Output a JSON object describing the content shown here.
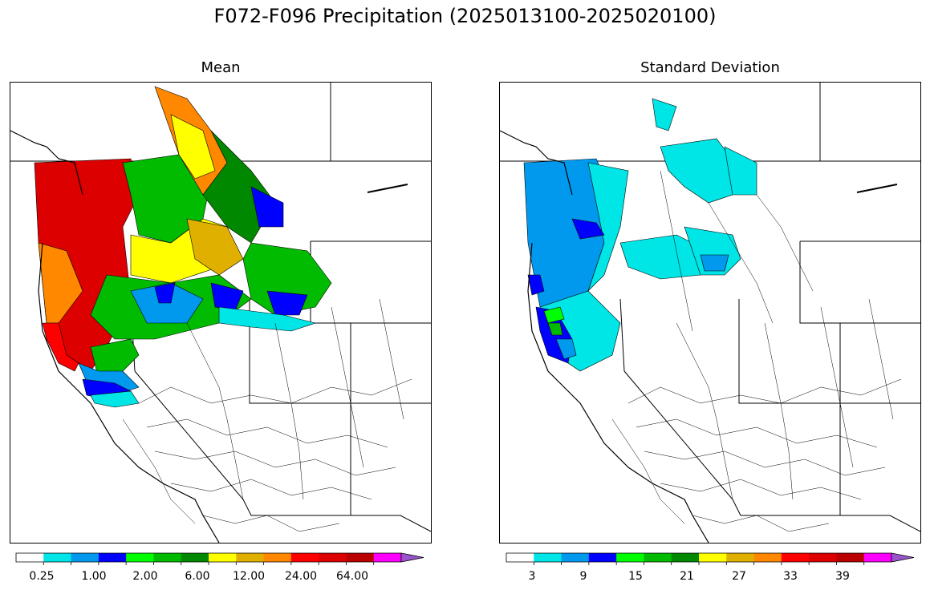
{
  "title": "F072-F096 Precipitation (2025013100-2025020100)",
  "panels": [
    {
      "subtitle": "Mean"
    },
    {
      "subtitle": "Standard Deviation"
    }
  ],
  "colors": {
    "scale": [
      "#ffffff",
      "#00e5e5",
      "#0099ee",
      "#0000ff",
      "#00ff00",
      "#00bb00",
      "#008800",
      "#ffff00",
      "#e0b000",
      "#ff8800",
      "#ff0000",
      "#dd0000",
      "#bb0000",
      "#ff00ff",
      "#9955cc"
    ]
  },
  "colorbars": [
    {
      "tick_labels": [
        "0.25",
        "1.00",
        "2.00",
        "6.00",
        "12.00",
        "24.00",
        "64.00"
      ]
    },
    {
      "tick_labels": [
        "3",
        "9",
        "15",
        "21",
        "27",
        "33",
        "39"
      ]
    }
  ]
}
